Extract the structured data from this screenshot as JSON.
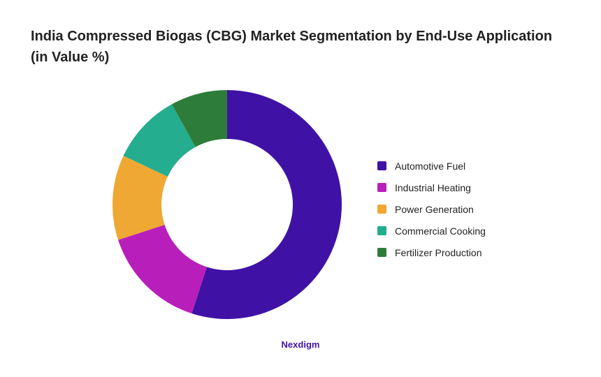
{
  "title": "India Compressed Biogas (CBG) Market Segmentation by End-Use Application (in Value %)",
  "brand": {
    "text": "Nexdigm",
    "color": "#3f12a5"
  },
  "chart_data": {
    "type": "pie",
    "donut": true,
    "title": "India Compressed Biogas (CBG) Market Segmentation by End-Use Application (in Value %)",
    "legend_position": "right",
    "categories": [
      "Automotive Fuel",
      "Industrial Heating",
      "Power Generation",
      "Commercial Cooking",
      "Fertilizer Production"
    ],
    "values": [
      55,
      15,
      12,
      10,
      8
    ],
    "colors": [
      "#3f12a5",
      "#b81fba",
      "#efa833",
      "#24ad8e",
      "#2e7c3a"
    ]
  }
}
